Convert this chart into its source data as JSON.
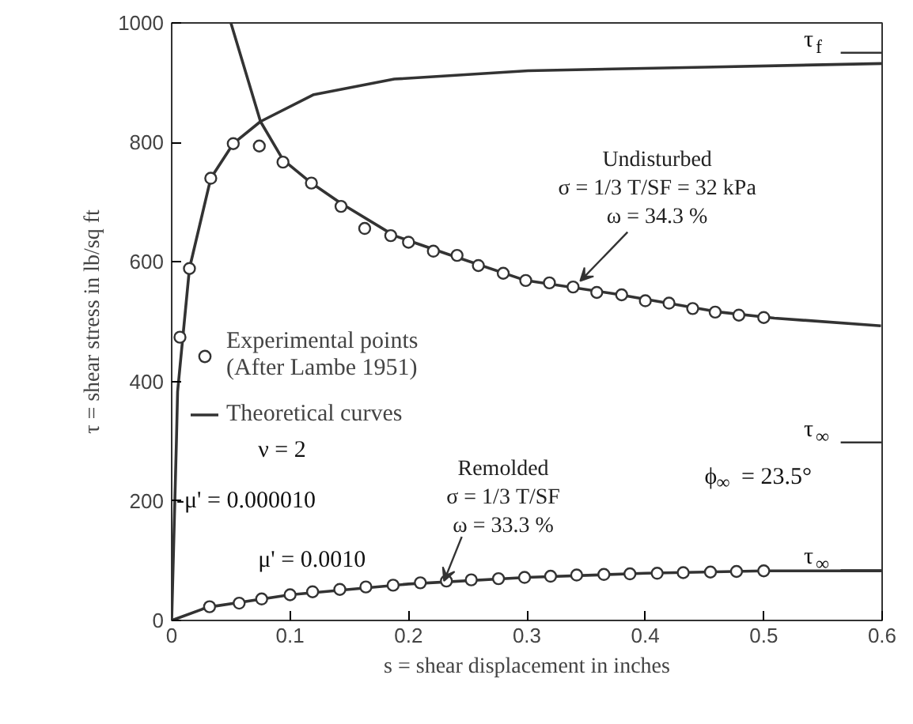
{
  "chart_data": {
    "type": "line",
    "xlabel": "s = shear displacement in inches",
    "ylabel": "τ = shear stress in lb/sq ft",
    "xlim": [
      0,
      0.6
    ],
    "xticks": [
      0,
      0.1,
      0.2,
      0.3,
      0.4,
      0.5,
      0.6
    ],
    "ylim": [
      0,
      1000
    ],
    "yticks": [
      0,
      200,
      400,
      600,
      800,
      1000
    ],
    "grid": false,
    "legend": "left",
    "series": [
      {
        "type": "scatter",
        "name": "Experimental points\n(After Lambe 1951)",
        "color": "#333333",
        "marker": "circle",
        "x": [
          0.007,
          0.015,
          0.033,
          0.052,
          0.074,
          0.094,
          0.118,
          0.143,
          0.163,
          0.185,
          0.2,
          0.221,
          0.241,
          0.259,
          0.28,
          0.299,
          0.319,
          0.339,
          0.359,
          0.38,
          0.4,
          0.42,
          0.44,
          0.459,
          0.479,
          0.5
        ],
        "values": [
          474,
          589,
          740,
          798,
          794,
          767,
          732,
          693,
          656,
          644,
          633,
          618,
          611,
          594,
          581,
          569,
          565,
          558,
          549,
          545,
          535,
          531,
          522,
          516,
          511,
          507
        ]
      },
      {
        "type": "scatter",
        "color": "#333333",
        "marker": "circle",
        "x": [
          0.032,
          0.057,
          0.076,
          0.1,
          0.119,
          0.142,
          0.164,
          0.187,
          0.21,
          0.232,
          0.253,
          0.276,
          0.298,
          0.32,
          0.342,
          0.365,
          0.387,
          0.41,
          0.432,
          0.455,
          0.477,
          0.5
        ],
        "values": [
          23,
          29,
          36,
          43,
          48,
          52,
          56,
          59,
          63,
          66,
          68,
          70,
          72,
          74,
          76,
          77,
          78,
          79,
          80,
          81,
          82,
          83
        ]
      },
      {
        "name": "Theoretical curves",
        "color": "#333333",
        "x": [
          0,
          0.002,
          0.004,
          0.005,
          0.015,
          0.033,
          0.052,
          0.075,
          0.12,
          0.188,
          0.301,
          0.45,
          0.6
        ],
        "values": [
          0,
          150,
          300,
          383,
          589,
          740,
          798,
          835,
          880,
          906,
          920,
          926,
          932
        ]
      },
      {
        "color": "#333333",
        "x": [
          0.05,
          0.075,
          0.094,
          0.118,
          0.143,
          0.188,
          0.233,
          0.299,
          0.373,
          0.463,
          0.509,
          0.599
        ],
        "values": [
          1000,
          835,
          771,
          732,
          698,
          644,
          613,
          569,
          547,
          516,
          506,
          493
        ]
      },
      {
        "color": "#333333",
        "x": [
          0,
          0.03,
          0.1,
          0.2,
          0.3,
          0.4,
          0.5,
          0.6
        ],
        "values": [
          0,
          22,
          43,
          61,
          72,
          79,
          83,
          83
        ]
      }
    ],
    "annotations": [
      {
        "text": "Undisturbed\nσ = 1/3 T/SF = 32 kPa\nω = 34.3 %",
        "x": 0.345,
        "y": 568
      },
      {
        "text": "Remolded\nσ = 1/3 T/SF\nω = 33.3 %",
        "x": 0.23,
        "y": 66
      },
      "ν = 2",
      "-μ' = 0.000010",
      "μ' = 0.0010",
      "ϕ$_{∞}$ = 23.5°",
      "τ$_{f}$",
      "τ$_{∞}$",
      "τ$_{∞}$"
    ]
  }
}
